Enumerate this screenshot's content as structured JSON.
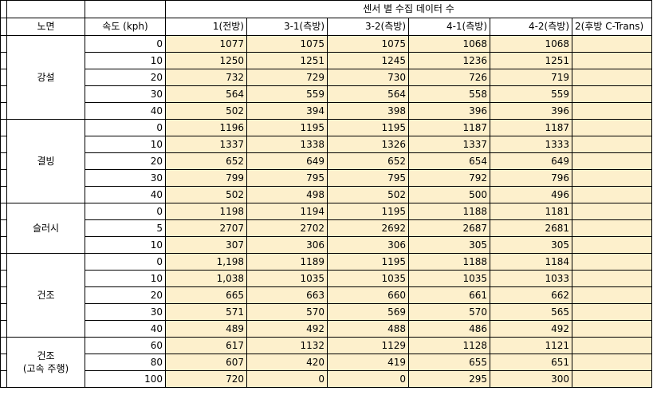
{
  "header": {
    "group_title": "센서 별 수집 데이터 수",
    "col_surface": "노면",
    "col_speed": "속도 (kph)",
    "sensors": [
      "1(전방)",
      "3-1(측방)",
      "3-2(측방)",
      "4-1(측방)",
      "4-2(측방)",
      "2(후방 C-Trans)"
    ]
  },
  "groups": [
    {
      "surface": "강설",
      "rows": [
        {
          "speed": "0",
          "values": [
            "1077",
            "1075",
            "1075",
            "1068",
            "1068",
            ""
          ]
        },
        {
          "speed": "10",
          "values": [
            "1250",
            "1251",
            "1245",
            "1236",
            "1251",
            ""
          ]
        },
        {
          "speed": "20",
          "values": [
            "732",
            "729",
            "730",
            "726",
            "719",
            ""
          ]
        },
        {
          "speed": "30",
          "values": [
            "564",
            "559",
            "564",
            "558",
            "559",
            ""
          ]
        },
        {
          "speed": "40",
          "values": [
            "502",
            "394",
            "398",
            "396",
            "396",
            ""
          ]
        }
      ]
    },
    {
      "surface": "결빙",
      "rows": [
        {
          "speed": "0",
          "values": [
            "1196",
            "1195",
            "1195",
            "1187",
            "1187",
            ""
          ]
        },
        {
          "speed": "10",
          "values": [
            "1337",
            "1338",
            "1326",
            "1337",
            "1333",
            ""
          ]
        },
        {
          "speed": "20",
          "values": [
            "652",
            "649",
            "652",
            "654",
            "649",
            ""
          ]
        },
        {
          "speed": "30",
          "values": [
            "799",
            "795",
            "795",
            "792",
            "796",
            ""
          ]
        },
        {
          "speed": "40",
          "values": [
            "502",
            "498",
            "502",
            "500",
            "496",
            ""
          ]
        }
      ]
    },
    {
      "surface": "슬러시",
      "rows": [
        {
          "speed": "0",
          "values": [
            "1198",
            "1194",
            "1195",
            "1188",
            "1181",
            ""
          ]
        },
        {
          "speed": "5",
          "values": [
            "2707",
            "2702",
            "2692",
            "2687",
            "2681",
            ""
          ]
        },
        {
          "speed": "10",
          "values": [
            "307",
            "306",
            "306",
            "305",
            "305",
            ""
          ]
        }
      ]
    },
    {
      "surface": "건조",
      "rows": [
        {
          "speed": "0",
          "values": [
            "1,198",
            "1189",
            "1195",
            "1188",
            "1184",
            ""
          ]
        },
        {
          "speed": "10",
          "values": [
            "1,038",
            "1035",
            "1035",
            "1035",
            "1033",
            ""
          ]
        },
        {
          "speed": "20",
          "values": [
            "665",
            "663",
            "660",
            "661",
            "662",
            ""
          ]
        },
        {
          "speed": "30",
          "values": [
            "571",
            "570",
            "569",
            "570",
            "565",
            ""
          ]
        },
        {
          "speed": "40",
          "values": [
            "489",
            "492",
            "488",
            "486",
            "492",
            ""
          ]
        }
      ]
    },
    {
      "surface": "건조\n(고속 주행)",
      "rows": [
        {
          "speed": "60",
          "values": [
            "617",
            "1132",
            "1129",
            "1128",
            "1121",
            ""
          ]
        },
        {
          "speed": "80",
          "values": [
            "607",
            "420",
            "419",
            "655",
            "651",
            ""
          ]
        },
        {
          "speed": "100",
          "values": [
            "720",
            "0",
            "0",
            "295",
            "300",
            ""
          ]
        }
      ]
    }
  ]
}
